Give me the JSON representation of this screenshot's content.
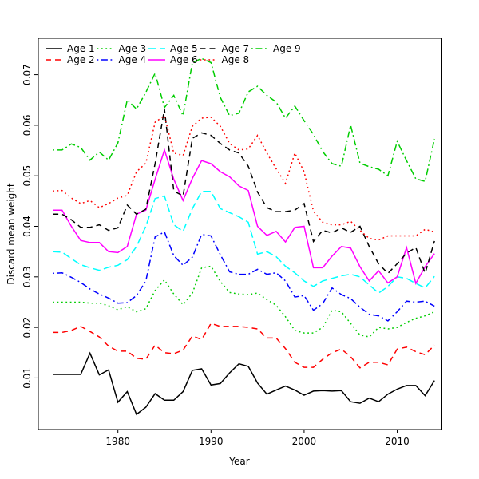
{
  "figure": {
    "background": "#ffffff",
    "border_color": "#000000"
  },
  "chart_data": {
    "type": "line",
    "title": "",
    "xlabel": "Year",
    "ylabel": "Discard mean weight",
    "grid": false,
    "legend_position": "top-left-inside",
    "legend_columns": 5,
    "legend_fill": "column-major",
    "xlim": [
      1971.45,
      2014.8
    ],
    "ylim": [
      -0.0002,
      0.0772
    ],
    "x_ticks": [
      1980,
      1990,
      2000,
      2010
    ],
    "y_ticks": [
      0.01,
      0.02,
      0.03,
      0.04,
      0.05,
      0.06,
      0.07
    ],
    "x": [
      1973,
      1974,
      1975,
      1976,
      1977,
      1978,
      1979,
      1980,
      1981,
      1982,
      1983,
      1984,
      1985,
      1986,
      1987,
      1988,
      1989,
      1990,
      1991,
      1992,
      1993,
      1994,
      1995,
      1996,
      1997,
      1998,
      1999,
      2000,
      2001,
      2002,
      2003,
      2004,
      2005,
      2006,
      2007,
      2008,
      2009,
      2010,
      2011,
      2012,
      2013,
      2014
    ],
    "series": [
      {
        "name": "Age 1",
        "color": "#000000",
        "linestyle": "solid",
        "values": [
          0.0107,
          0.0107,
          0.0107,
          0.0107,
          0.0149,
          0.0106,
          0.0116,
          0.0052,
          0.0073,
          0.0028,
          0.0042,
          0.0069,
          0.0056,
          0.0056,
          0.0073,
          0.0115,
          0.0118,
          0.0086,
          0.0089,
          0.011,
          0.0128,
          0.0123,
          0.009,
          0.0068,
          0.0076,
          0.0084,
          0.0076,
          0.0066,
          0.0074,
          0.0075,
          0.0074,
          0.0075,
          0.0053,
          0.005,
          0.006,
          0.0053,
          0.0068,
          0.0078,
          0.0085,
          0.0085,
          0.0065,
          0.0095
        ]
      },
      {
        "name": "Age 2",
        "color": "#ff0000",
        "linestyle": "dashed",
        "values": [
          0.019,
          0.019,
          0.0194,
          0.0202,
          0.0192,
          0.0181,
          0.0163,
          0.0153,
          0.0153,
          0.0139,
          0.0137,
          0.0165,
          0.015,
          0.0148,
          0.0155,
          0.0183,
          0.0176,
          0.0208,
          0.0202,
          0.0202,
          0.0202,
          0.02,
          0.0197,
          0.0179,
          0.0179,
          0.0158,
          0.0131,
          0.0121,
          0.0121,
          0.0137,
          0.015,
          0.0157,
          0.0142,
          0.012,
          0.0131,
          0.0131,
          0.0126,
          0.0157,
          0.0161,
          0.0152,
          0.0146,
          0.0165
        ]
      },
      {
        "name": "Age 3",
        "color": "#00cd00",
        "linestyle": "dotted",
        "values": [
          0.025,
          0.025,
          0.025,
          0.025,
          0.0248,
          0.0248,
          0.0243,
          0.0235,
          0.0241,
          0.0231,
          0.0237,
          0.0273,
          0.0294,
          0.0266,
          0.0245,
          0.0268,
          0.0318,
          0.0321,
          0.0291,
          0.0269,
          0.0266,
          0.0265,
          0.0268,
          0.0255,
          0.0244,
          0.0221,
          0.0194,
          0.0189,
          0.0189,
          0.02,
          0.0234,
          0.0231,
          0.0208,
          0.0185,
          0.0181,
          0.02,
          0.0197,
          0.02,
          0.021,
          0.0218,
          0.0223,
          0.0231
        ]
      },
      {
        "name": "Age 4",
        "color": "#0000ff",
        "linestyle": "dotdash",
        "values": [
          0.0307,
          0.0308,
          0.0299,
          0.0289,
          0.0276,
          0.0266,
          0.0258,
          0.0248,
          0.0249,
          0.0263,
          0.0292,
          0.0379,
          0.0389,
          0.0342,
          0.0323,
          0.0339,
          0.0384,
          0.0381,
          0.0344,
          0.031,
          0.0305,
          0.0305,
          0.0315,
          0.0305,
          0.0308,
          0.0292,
          0.026,
          0.0263,
          0.0234,
          0.0247,
          0.0278,
          0.0265,
          0.0257,
          0.024,
          0.0226,
          0.0223,
          0.0213,
          0.0231,
          0.0252,
          0.025,
          0.0252,
          0.0242
        ]
      },
      {
        "name": "Age 5",
        "color": "#00ffff",
        "linestyle": "longdash",
        "values": [
          0.035,
          0.0349,
          0.0336,
          0.0324,
          0.0318,
          0.0313,
          0.0319,
          0.0323,
          0.0334,
          0.036,
          0.04,
          0.0455,
          0.046,
          0.0403,
          0.039,
          0.0435,
          0.0469,
          0.0469,
          0.0435,
          0.0427,
          0.0419,
          0.0408,
          0.0345,
          0.035,
          0.034,
          0.0321,
          0.0308,
          0.0292,
          0.0281,
          0.0292,
          0.0297,
          0.0302,
          0.0305,
          0.03,
          0.0284,
          0.0268,
          0.0281,
          0.03,
          0.0297,
          0.0287,
          0.0278,
          0.0301
        ]
      },
      {
        "name": "Age 6",
        "color": "#ff00ff",
        "linestyle": "solid",
        "values": [
          0.0432,
          0.0432,
          0.04,
          0.0372,
          0.0368,
          0.0368,
          0.035,
          0.0348,
          0.036,
          0.0424,
          0.0432,
          0.0493,
          0.0551,
          0.0493,
          0.0451,
          0.0495,
          0.053,
          0.0524,
          0.0508,
          0.0498,
          0.048,
          0.0471,
          0.04,
          0.0382,
          0.039,
          0.0369,
          0.0398,
          0.04,
          0.0318,
          0.0318,
          0.0341,
          0.036,
          0.0357,
          0.032,
          0.0292,
          0.0312,
          0.0288,
          0.03,
          0.0358,
          0.0287,
          0.032,
          0.0346
        ]
      },
      {
        "name": "Age 7",
        "color": "#000000",
        "linestyle": "dashed",
        "values": [
          0.0424,
          0.0424,
          0.0413,
          0.0398,
          0.0398,
          0.0403,
          0.0392,
          0.0397,
          0.0442,
          0.0424,
          0.0434,
          0.0524,
          0.0632,
          0.047,
          0.046,
          0.0574,
          0.0585,
          0.058,
          0.0564,
          0.0551,
          0.0545,
          0.0519,
          0.0468,
          0.0437,
          0.0429,
          0.0429,
          0.0432,
          0.0445,
          0.037,
          0.0392,
          0.0387,
          0.0397,
          0.0388,
          0.04,
          0.036,
          0.0326,
          0.0307,
          0.0326,
          0.0347,
          0.0358,
          0.0307,
          0.0371
        ]
      },
      {
        "name": "Age 8",
        "color": "#ff0000",
        "linestyle": "dotted",
        "values": [
          0.047,
          0.0471,
          0.0456,
          0.0445,
          0.0451,
          0.0437,
          0.0445,
          0.0456,
          0.0461,
          0.0508,
          0.0525,
          0.0606,
          0.0619,
          0.0545,
          0.054,
          0.0598,
          0.0614,
          0.0616,
          0.0598,
          0.0564,
          0.0551,
          0.0553,
          0.058,
          0.0545,
          0.0514,
          0.0485,
          0.0545,
          0.0508,
          0.043,
          0.0408,
          0.0403,
          0.0403,
          0.041,
          0.0392,
          0.0376,
          0.0373,
          0.0381,
          0.0381,
          0.0381,
          0.0381,
          0.0394,
          0.0389
        ]
      },
      {
        "name": "Age 9",
        "color": "#00cd00",
        "linestyle": "dotdash",
        "values": [
          0.0551,
          0.0551,
          0.0563,
          0.0556,
          0.0531,
          0.0547,
          0.0531,
          0.0565,
          0.065,
          0.0632,
          0.0665,
          0.0703,
          0.0635,
          0.0659,
          0.0619,
          0.0724,
          0.0732,
          0.0724,
          0.0655,
          0.0619,
          0.0624,
          0.0666,
          0.0677,
          0.0659,
          0.0646,
          0.0614,
          0.0638,
          0.0609,
          0.0582,
          0.0548,
          0.0524,
          0.0519,
          0.06,
          0.0525,
          0.0518,
          0.0513,
          0.05,
          0.0568,
          0.053,
          0.0494,
          0.0489,
          0.0573
        ]
      }
    ]
  }
}
